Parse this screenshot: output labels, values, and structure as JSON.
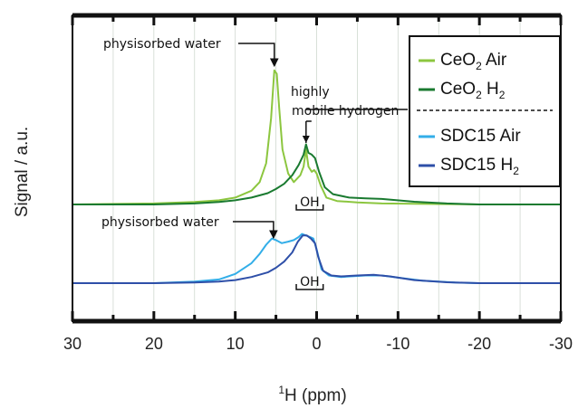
{
  "chart_data": {
    "type": "line",
    "title": "",
    "xlabel_sup": "1",
    "xlabel": "H (ppm)",
    "ylabel": "Signal / a.u.",
    "xlim": [
      30,
      -30
    ],
    "x_ticks": [
      30,
      20,
      10,
      0,
      -10,
      -20,
      -30
    ],
    "x_tick_labels": [
      "30",
      "20",
      "10",
      "0",
      "-10",
      "-20",
      "-30"
    ],
    "minor_ticks": [
      25,
      15,
      5,
      -5,
      -15,
      -25
    ],
    "grid": true,
    "legend_position": "top-right",
    "series": [
      {
        "name": "CeO2 Air",
        "label_main": "CeO",
        "label_sub": "2",
        "label_rest": " Air",
        "color": "#8cc63f",
        "group": "upper",
        "points": [
          [
            30,
            0.0
          ],
          [
            20,
            0.03
          ],
          [
            15,
            0.07
          ],
          [
            12,
            0.12
          ],
          [
            10,
            0.2
          ],
          [
            8,
            0.4
          ],
          [
            7,
            0.65
          ],
          [
            6.2,
            1.2
          ],
          [
            5.6,
            2.5
          ],
          [
            5.2,
            3.9
          ],
          [
            4.9,
            3.8
          ],
          [
            4.6,
            2.8
          ],
          [
            4.2,
            1.6
          ],
          [
            3.5,
            0.9
          ],
          [
            2.8,
            0.65
          ],
          [
            2.0,
            0.85
          ],
          [
            1.6,
            1.1
          ],
          [
            1.3,
            1.6
          ],
          [
            1.0,
            1.1
          ],
          [
            0.6,
            0.95
          ],
          [
            0.3,
            1.0
          ],
          [
            0.0,
            0.9
          ],
          [
            -0.5,
            0.55
          ],
          [
            -1.2,
            0.2
          ],
          [
            -2.5,
            0.1
          ],
          [
            -5,
            0.06
          ],
          [
            -8,
            0.03
          ],
          [
            -12,
            0.02
          ],
          [
            -20,
            0.0
          ],
          [
            -30,
            0.0
          ]
        ]
      },
      {
        "name": "CeO2 H2",
        "label_main": "CeO",
        "label_sub": "2",
        "label_rest": " H",
        "label_sub2": "2",
        "color": "#1a7a30",
        "group": "upper",
        "points": [
          [
            30,
            0.0
          ],
          [
            20,
            0.0
          ],
          [
            15,
            0.03
          ],
          [
            12,
            0.07
          ],
          [
            10,
            0.12
          ],
          [
            8,
            0.2
          ],
          [
            6,
            0.33
          ],
          [
            5,
            0.45
          ],
          [
            4,
            0.6
          ],
          [
            3,
            0.85
          ],
          [
            2.2,
            1.15
          ],
          [
            1.6,
            1.45
          ],
          [
            1.3,
            1.75
          ],
          [
            1.0,
            1.5
          ],
          [
            0.6,
            1.45
          ],
          [
            0.2,
            1.35
          ],
          [
            -0.3,
            0.95
          ],
          [
            -1.0,
            0.5
          ],
          [
            -2,
            0.3
          ],
          [
            -4,
            0.2
          ],
          [
            -6,
            0.18
          ],
          [
            -8,
            0.16
          ],
          [
            -12,
            0.08
          ],
          [
            -16,
            0.03
          ],
          [
            -20,
            0.0
          ],
          [
            -30,
            0.0
          ]
        ]
      },
      {
        "name": "SDC15 Air",
        "label_main": "SDC15 Air",
        "color": "#33aee8",
        "group": "lower",
        "points": [
          [
            30,
            0.0
          ],
          [
            20,
            0.0
          ],
          [
            15,
            0.05
          ],
          [
            12,
            0.12
          ],
          [
            10,
            0.3
          ],
          [
            8,
            0.65
          ],
          [
            7,
            0.95
          ],
          [
            6.2,
            1.25
          ],
          [
            5.5,
            1.45
          ],
          [
            5.0,
            1.4
          ],
          [
            4.3,
            1.3
          ],
          [
            3.5,
            1.35
          ],
          [
            2.8,
            1.4
          ],
          [
            2.2,
            1.5
          ],
          [
            1.8,
            1.6
          ],
          [
            1.3,
            1.55
          ],
          [
            0.8,
            1.5
          ],
          [
            0.4,
            1.45
          ],
          [
            0.0,
            1.1
          ],
          [
            -0.6,
            0.45
          ],
          [
            -1.5,
            0.25
          ],
          [
            -3,
            0.2
          ],
          [
            -6,
            0.25
          ],
          [
            -8,
            0.25
          ],
          [
            -10,
            0.18
          ],
          [
            -13,
            0.08
          ],
          [
            -17,
            0.02
          ],
          [
            -20,
            0.0
          ],
          [
            -30,
            0.0
          ]
        ]
      },
      {
        "name": "SDC15 H2",
        "label_main": "SDC15 H",
        "label_sub": "2",
        "color": "#2e4fa8",
        "group": "lower",
        "points": [
          [
            30,
            0.0
          ],
          [
            20,
            0.0
          ],
          [
            15,
            0.02
          ],
          [
            12,
            0.05
          ],
          [
            10,
            0.1
          ],
          [
            8,
            0.2
          ],
          [
            6,
            0.35
          ],
          [
            5,
            0.5
          ],
          [
            4,
            0.7
          ],
          [
            3,
            1.0
          ],
          [
            2.3,
            1.35
          ],
          [
            1.7,
            1.55
          ],
          [
            1.2,
            1.55
          ],
          [
            0.7,
            1.45
          ],
          [
            0.2,
            1.3
          ],
          [
            -0.2,
            0.85
          ],
          [
            -0.8,
            0.4
          ],
          [
            -1.8,
            0.25
          ],
          [
            -3,
            0.22
          ],
          [
            -5,
            0.25
          ],
          [
            -7,
            0.27
          ],
          [
            -9,
            0.22
          ],
          [
            -12,
            0.1
          ],
          [
            -16,
            0.03
          ],
          [
            -20,
            0.0
          ],
          [
            -30,
            0.0
          ]
        ]
      }
    ],
    "annotations": [
      {
        "text": "physisorbed water",
        "group": "upper",
        "arrow_x": 5.2
      },
      {
        "text": "highly",
        "group": "upper-line1"
      },
      {
        "text": "mobile hydrogen",
        "group": "upper-line2",
        "arrow_x": 1.3
      },
      {
        "text": "OH",
        "group": "upper-bracket",
        "x_from": 2.5,
        "x_to": -0.8
      },
      {
        "text": "physisorbed water",
        "group": "lower",
        "arrow_x": 5.3
      },
      {
        "text": "OH",
        "group": "lower-bracket",
        "x_from": 2.5,
        "x_to": -0.8
      }
    ]
  }
}
